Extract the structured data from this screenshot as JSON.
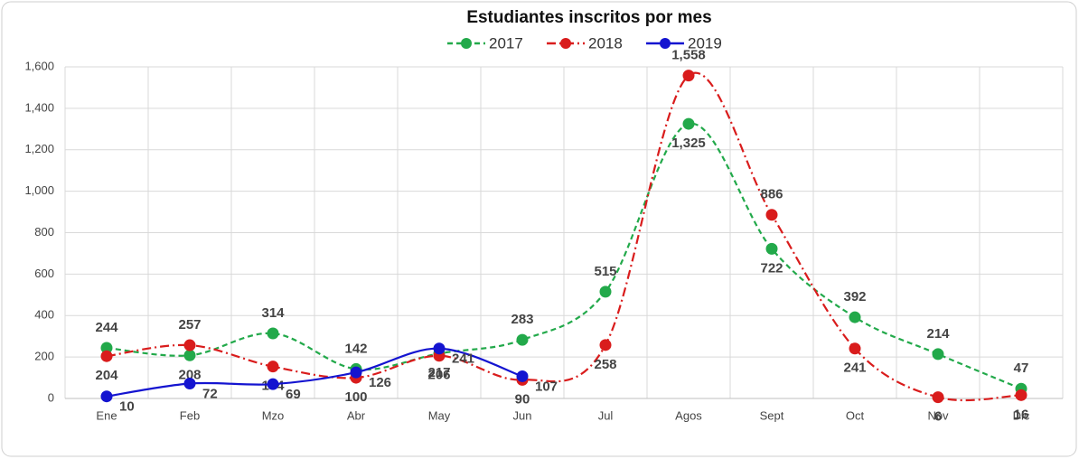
{
  "chart_data": {
    "type": "line",
    "title": "Estudiantes inscritos por mes",
    "categories": [
      "Ene",
      "Feb",
      "Mzo",
      "Abr",
      "May",
      "Jun",
      "Jul",
      "Agos",
      "Sept",
      "Oct",
      "Nov",
      "Dic"
    ],
    "series": [
      {
        "name": "2017",
        "color": "#22a94a",
        "line_style": "dashed",
        "values": [
          244,
          208,
          314,
          142,
          217,
          283,
          515,
          1325,
          722,
          392,
          214,
          47
        ],
        "value_labels": [
          "244",
          "208",
          "314",
          "142",
          "217",
          "283",
          "515",
          "1,325",
          "722",
          "392",
          "214",
          "47"
        ]
      },
      {
        "name": "2018",
        "color": "#d91c1c",
        "line_style": "dashdot",
        "values": [
          204,
          257,
          154,
          100,
          206,
          90,
          258,
          1558,
          886,
          241,
          6,
          16
        ],
        "value_labels": [
          "204",
          "257",
          "154",
          "100",
          "206",
          "90",
          "258",
          "1,558",
          "886",
          "241",
          "6",
          "16"
        ]
      },
      {
        "name": "2019",
        "color": "#1414d0",
        "line_style": "solid",
        "values": [
          10,
          72,
          69,
          126,
          241,
          107,
          null,
          null,
          null,
          null,
          null,
          null
        ]
      }
    ],
    "ylim": [
      0,
      1600
    ],
    "yticks": [
      0,
      200,
      400,
      600,
      800,
      {
        "value": 1000,
        "label": "1,000"
      },
      {
        "value": 1200,
        "label": "1,200"
      },
      {
        "value": 1400,
        "label": "1,400"
      },
      {
        "value": 1600,
        "label": "1,600"
      }
    ],
    "grid": true,
    "legend": "top"
  }
}
